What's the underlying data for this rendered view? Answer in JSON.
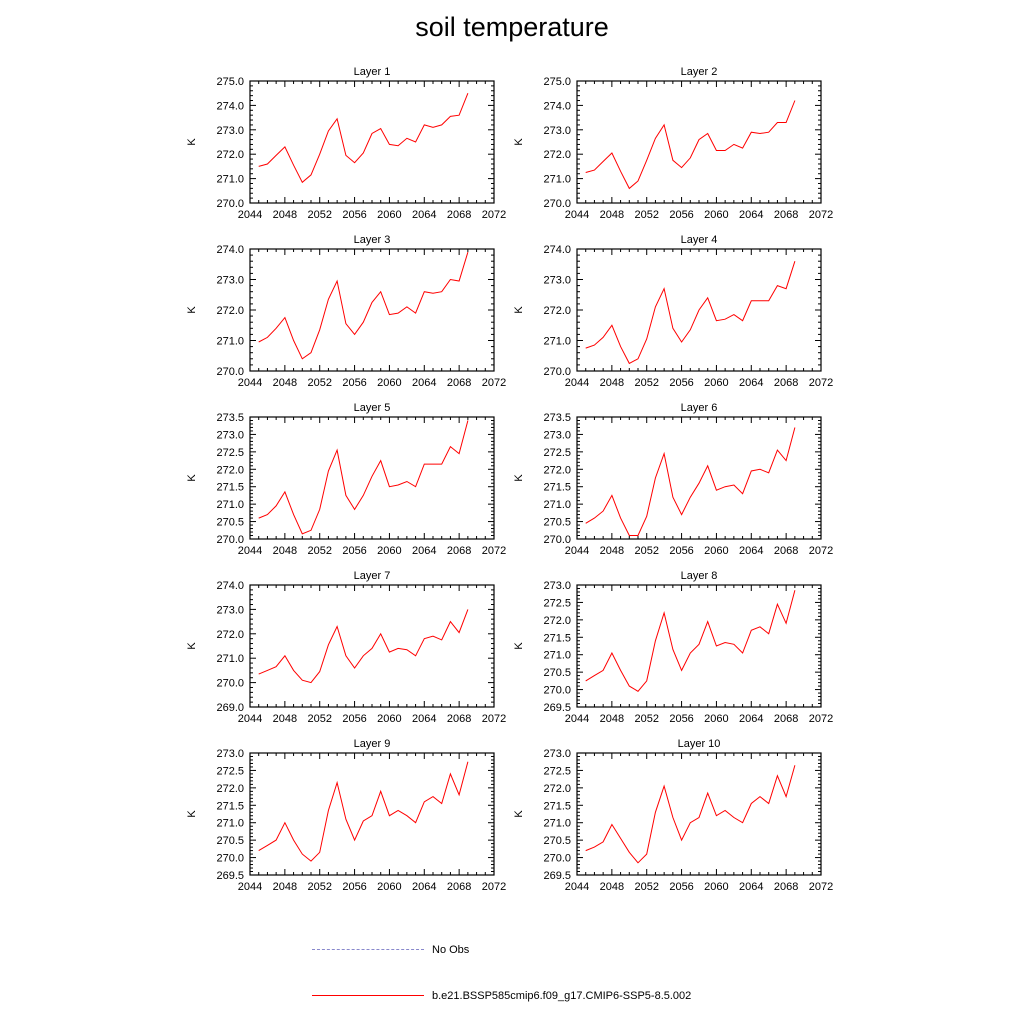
{
  "page": {
    "title": "soil temperature"
  },
  "legend": {
    "obs_label": "No Obs",
    "model_label": "b.e21.BSSP585cmip6.f09_g17.CMIP6-SSP5-8.5.002",
    "obs_color": "#8888cc",
    "model_color": "#ff0000"
  },
  "chart_data": [
    {
      "type": "line",
      "title": "Layer 1",
      "ylabel": "K",
      "xlim": [
        2044,
        2072
      ],
      "ylim": [
        270.0,
        275.0
      ],
      "xticks": [
        2044,
        2048,
        2052,
        2056,
        2060,
        2064,
        2068,
        2072
      ],
      "yticks": [
        "270.0",
        "271.0",
        "272.0",
        "273.0",
        "274.0",
        "275.0"
      ],
      "x": [
        2045,
        2046,
        2047,
        2048,
        2049,
        2050,
        2051,
        2052,
        2053,
        2054,
        2055,
        2056,
        2057,
        2058,
        2059,
        2060,
        2061,
        2062,
        2063,
        2064,
        2065,
        2066,
        2067,
        2068,
        2069
      ],
      "series": [
        {
          "color": "#ff0000",
          "values": [
            271.5,
            271.6,
            271.95,
            272.3,
            271.55,
            270.85,
            271.15,
            272.0,
            272.95,
            273.45,
            271.95,
            271.65,
            272.05,
            272.85,
            273.05,
            272.4,
            272.35,
            272.65,
            272.5,
            273.2,
            273.1,
            273.2,
            273.55,
            273.6,
            274.5
          ]
        }
      ]
    },
    {
      "type": "line",
      "title": "Layer 2",
      "ylabel": "K",
      "xlim": [
        2044,
        2072
      ],
      "ylim": [
        270.0,
        275.0
      ],
      "xticks": [
        2044,
        2048,
        2052,
        2056,
        2060,
        2064,
        2068,
        2072
      ],
      "yticks": [
        "270.0",
        "271.0",
        "272.0",
        "273.0",
        "274.0",
        "275.0"
      ],
      "x": [
        2045,
        2046,
        2047,
        2048,
        2049,
        2050,
        2051,
        2052,
        2053,
        2054,
        2055,
        2056,
        2057,
        2058,
        2059,
        2060,
        2061,
        2062,
        2063,
        2064,
        2065,
        2066,
        2067,
        2068,
        2069
      ],
      "series": [
        {
          "color": "#ff0000",
          "values": [
            271.25,
            271.35,
            271.7,
            272.05,
            271.3,
            270.6,
            270.9,
            271.75,
            272.65,
            273.2,
            271.75,
            271.45,
            271.85,
            272.6,
            272.85,
            272.15,
            272.15,
            272.4,
            272.25,
            272.9,
            272.85,
            272.9,
            273.3,
            273.3,
            274.2
          ]
        }
      ]
    },
    {
      "type": "line",
      "title": "Layer 3",
      "ylabel": "K",
      "xlim": [
        2044,
        2072
      ],
      "ylim": [
        270.0,
        274.0
      ],
      "xticks": [
        2044,
        2048,
        2052,
        2056,
        2060,
        2064,
        2068,
        2072
      ],
      "yticks": [
        "270.0",
        "271.0",
        "272.0",
        "273.0",
        "274.0"
      ],
      "x": [
        2045,
        2046,
        2047,
        2048,
        2049,
        2050,
        2051,
        2052,
        2053,
        2054,
        2055,
        2056,
        2057,
        2058,
        2059,
        2060,
        2061,
        2062,
        2063,
        2064,
        2065,
        2066,
        2067,
        2068,
        2069
      ],
      "series": [
        {
          "color": "#ff0000",
          "values": [
            270.95,
            271.1,
            271.4,
            271.75,
            271.0,
            270.4,
            270.6,
            271.35,
            272.35,
            272.95,
            271.55,
            271.2,
            271.6,
            272.25,
            272.6,
            271.85,
            271.9,
            272.1,
            271.9,
            272.6,
            272.55,
            272.6,
            273.0,
            272.95,
            273.9
          ]
        }
      ]
    },
    {
      "type": "line",
      "title": "Layer 4",
      "ylabel": "K",
      "xlim": [
        2044,
        2072
      ],
      "ylim": [
        270.0,
        274.0
      ],
      "xticks": [
        2044,
        2048,
        2052,
        2056,
        2060,
        2064,
        2068,
        2072
      ],
      "yticks": [
        "270.0",
        "271.0",
        "272.0",
        "273.0",
        "274.0"
      ],
      "x": [
        2045,
        2046,
        2047,
        2048,
        2049,
        2050,
        2051,
        2052,
        2053,
        2054,
        2055,
        2056,
        2057,
        2058,
        2059,
        2060,
        2061,
        2062,
        2063,
        2064,
        2065,
        2066,
        2067,
        2068,
        2069
      ],
      "series": [
        {
          "color": "#ff0000",
          "values": [
            270.75,
            270.85,
            271.1,
            271.5,
            270.8,
            270.25,
            270.4,
            271.05,
            272.1,
            272.7,
            271.4,
            270.95,
            271.35,
            272.0,
            272.4,
            271.65,
            271.7,
            271.85,
            271.65,
            272.3,
            272.3,
            272.3,
            272.8,
            272.7,
            273.6
          ]
        }
      ]
    },
    {
      "type": "line",
      "title": "Layer 5",
      "ylabel": "K",
      "xlim": [
        2044,
        2072
      ],
      "ylim": [
        270.0,
        273.5
      ],
      "xticks": [
        2044,
        2048,
        2052,
        2056,
        2060,
        2064,
        2068,
        2072
      ],
      "yticks": [
        "270.0",
        "270.5",
        "271.0",
        "271.5",
        "272.0",
        "272.5",
        "273.0",
        "273.5"
      ],
      "x": [
        2045,
        2046,
        2047,
        2048,
        2049,
        2050,
        2051,
        2052,
        2053,
        2054,
        2055,
        2056,
        2057,
        2058,
        2059,
        2060,
        2061,
        2062,
        2063,
        2064,
        2065,
        2066,
        2067,
        2068,
        2069
      ],
      "series": [
        {
          "color": "#ff0000",
          "values": [
            270.6,
            270.7,
            270.95,
            271.35,
            270.7,
            270.15,
            270.25,
            270.85,
            271.95,
            272.55,
            271.25,
            270.85,
            271.25,
            271.8,
            272.25,
            271.5,
            271.55,
            271.65,
            271.5,
            272.15,
            272.15,
            272.15,
            272.65,
            272.45,
            273.4
          ]
        }
      ]
    },
    {
      "type": "line",
      "title": "Layer 6",
      "ylabel": "K",
      "xlim": [
        2044,
        2072
      ],
      "ylim": [
        270.0,
        273.5
      ],
      "xticks": [
        2044,
        2048,
        2052,
        2056,
        2060,
        2064,
        2068,
        2072
      ],
      "yticks": [
        "270.0",
        "270.5",
        "271.0",
        "271.5",
        "272.0",
        "272.5",
        "273.0",
        "273.5"
      ],
      "x": [
        2045,
        2046,
        2047,
        2048,
        2049,
        2050,
        2051,
        2052,
        2053,
        2054,
        2055,
        2056,
        2057,
        2058,
        2059,
        2060,
        2061,
        2062,
        2063,
        2064,
        2065,
        2066,
        2067,
        2068,
        2069
      ],
      "series": [
        {
          "color": "#ff0000",
          "values": [
            270.45,
            270.6,
            270.8,
            271.25,
            270.6,
            270.1,
            270.1,
            270.65,
            271.75,
            272.45,
            271.2,
            270.7,
            271.2,
            271.6,
            272.1,
            271.4,
            271.5,
            271.55,
            271.3,
            271.95,
            272.0,
            271.9,
            272.55,
            272.25,
            273.2
          ]
        }
      ]
    },
    {
      "type": "line",
      "title": "Layer 7",
      "ylabel": "K",
      "xlim": [
        2044,
        2072
      ],
      "ylim": [
        269.0,
        274.0
      ],
      "xticks": [
        2044,
        2048,
        2052,
        2056,
        2060,
        2064,
        2068,
        2072
      ],
      "yticks": [
        "269.0",
        "270.0",
        "271.0",
        "272.0",
        "273.0",
        "274.0"
      ],
      "x": [
        2045,
        2046,
        2047,
        2048,
        2049,
        2050,
        2051,
        2052,
        2053,
        2054,
        2055,
        2056,
        2057,
        2058,
        2059,
        2060,
        2061,
        2062,
        2063,
        2064,
        2065,
        2066,
        2067,
        2068,
        2069
      ],
      "series": [
        {
          "color": "#ff0000",
          "values": [
            270.35,
            270.5,
            270.65,
            271.1,
            270.5,
            270.1,
            270.0,
            270.45,
            271.55,
            272.3,
            271.1,
            270.6,
            271.1,
            271.4,
            272.0,
            271.25,
            271.4,
            271.35,
            271.1,
            271.8,
            271.9,
            271.75,
            272.5,
            272.05,
            273.0
          ]
        }
      ]
    },
    {
      "type": "line",
      "title": "Layer 8",
      "ylabel": "K",
      "xlim": [
        2044,
        2072
      ],
      "ylim": [
        269.5,
        273.0
      ],
      "xticks": [
        2044,
        2048,
        2052,
        2056,
        2060,
        2064,
        2068,
        2072
      ],
      "yticks": [
        "269.5",
        "270.0",
        "270.5",
        "271.0",
        "271.5",
        "272.0",
        "272.5",
        "273.0"
      ],
      "x": [
        2045,
        2046,
        2047,
        2048,
        2049,
        2050,
        2051,
        2052,
        2053,
        2054,
        2055,
        2056,
        2057,
        2058,
        2059,
        2060,
        2061,
        2062,
        2063,
        2064,
        2065,
        2066,
        2067,
        2068,
        2069
      ],
      "series": [
        {
          "color": "#ff0000",
          "values": [
            270.25,
            270.4,
            270.55,
            271.05,
            270.55,
            270.1,
            269.95,
            270.25,
            271.4,
            272.2,
            271.15,
            270.55,
            271.05,
            271.3,
            271.95,
            271.25,
            271.35,
            271.3,
            271.05,
            271.7,
            271.8,
            271.6,
            272.45,
            271.9,
            272.85
          ]
        }
      ]
    },
    {
      "type": "line",
      "title": "Layer 9",
      "ylabel": "K",
      "xlim": [
        2044,
        2072
      ],
      "ylim": [
        269.5,
        273.0
      ],
      "xticks": [
        2044,
        2048,
        2052,
        2056,
        2060,
        2064,
        2068,
        2072
      ],
      "yticks": [
        "269.5",
        "270.0",
        "270.5",
        "271.0",
        "271.5",
        "272.0",
        "272.5",
        "273.0"
      ],
      "x": [
        2045,
        2046,
        2047,
        2048,
        2049,
        2050,
        2051,
        2052,
        2053,
        2054,
        2055,
        2056,
        2057,
        2058,
        2059,
        2060,
        2061,
        2062,
        2063,
        2064,
        2065,
        2066,
        2067,
        2068,
        2069
      ],
      "series": [
        {
          "color": "#ff0000",
          "values": [
            270.2,
            270.35,
            270.5,
            271.0,
            270.5,
            270.1,
            269.9,
            270.15,
            271.35,
            272.15,
            271.1,
            270.5,
            271.05,
            271.2,
            271.9,
            271.2,
            271.35,
            271.2,
            271.0,
            271.6,
            271.75,
            271.55,
            272.4,
            271.8,
            272.75
          ]
        }
      ]
    },
    {
      "type": "line",
      "title": "Layer 10",
      "ylabel": "K",
      "xlim": [
        2044,
        2072
      ],
      "ylim": [
        269.5,
        273.0
      ],
      "xticks": [
        2044,
        2048,
        2052,
        2056,
        2060,
        2064,
        2068,
        2072
      ],
      "yticks": [
        "269.5",
        "270.0",
        "270.5",
        "271.0",
        "271.5",
        "272.0",
        "272.5",
        "273.0"
      ],
      "x": [
        2045,
        2046,
        2047,
        2048,
        2049,
        2050,
        2051,
        2052,
        2053,
        2054,
        2055,
        2056,
        2057,
        2058,
        2059,
        2060,
        2061,
        2062,
        2063,
        2064,
        2065,
        2066,
        2067,
        2068,
        2069
      ],
      "series": [
        {
          "color": "#ff0000",
          "values": [
            270.2,
            270.3,
            270.45,
            270.95,
            270.55,
            270.15,
            269.85,
            270.1,
            271.3,
            272.05,
            271.15,
            270.5,
            271.0,
            271.15,
            271.85,
            271.2,
            271.35,
            271.15,
            271.0,
            271.55,
            271.75,
            271.55,
            272.35,
            271.75,
            272.65
          ]
        }
      ]
    }
  ]
}
